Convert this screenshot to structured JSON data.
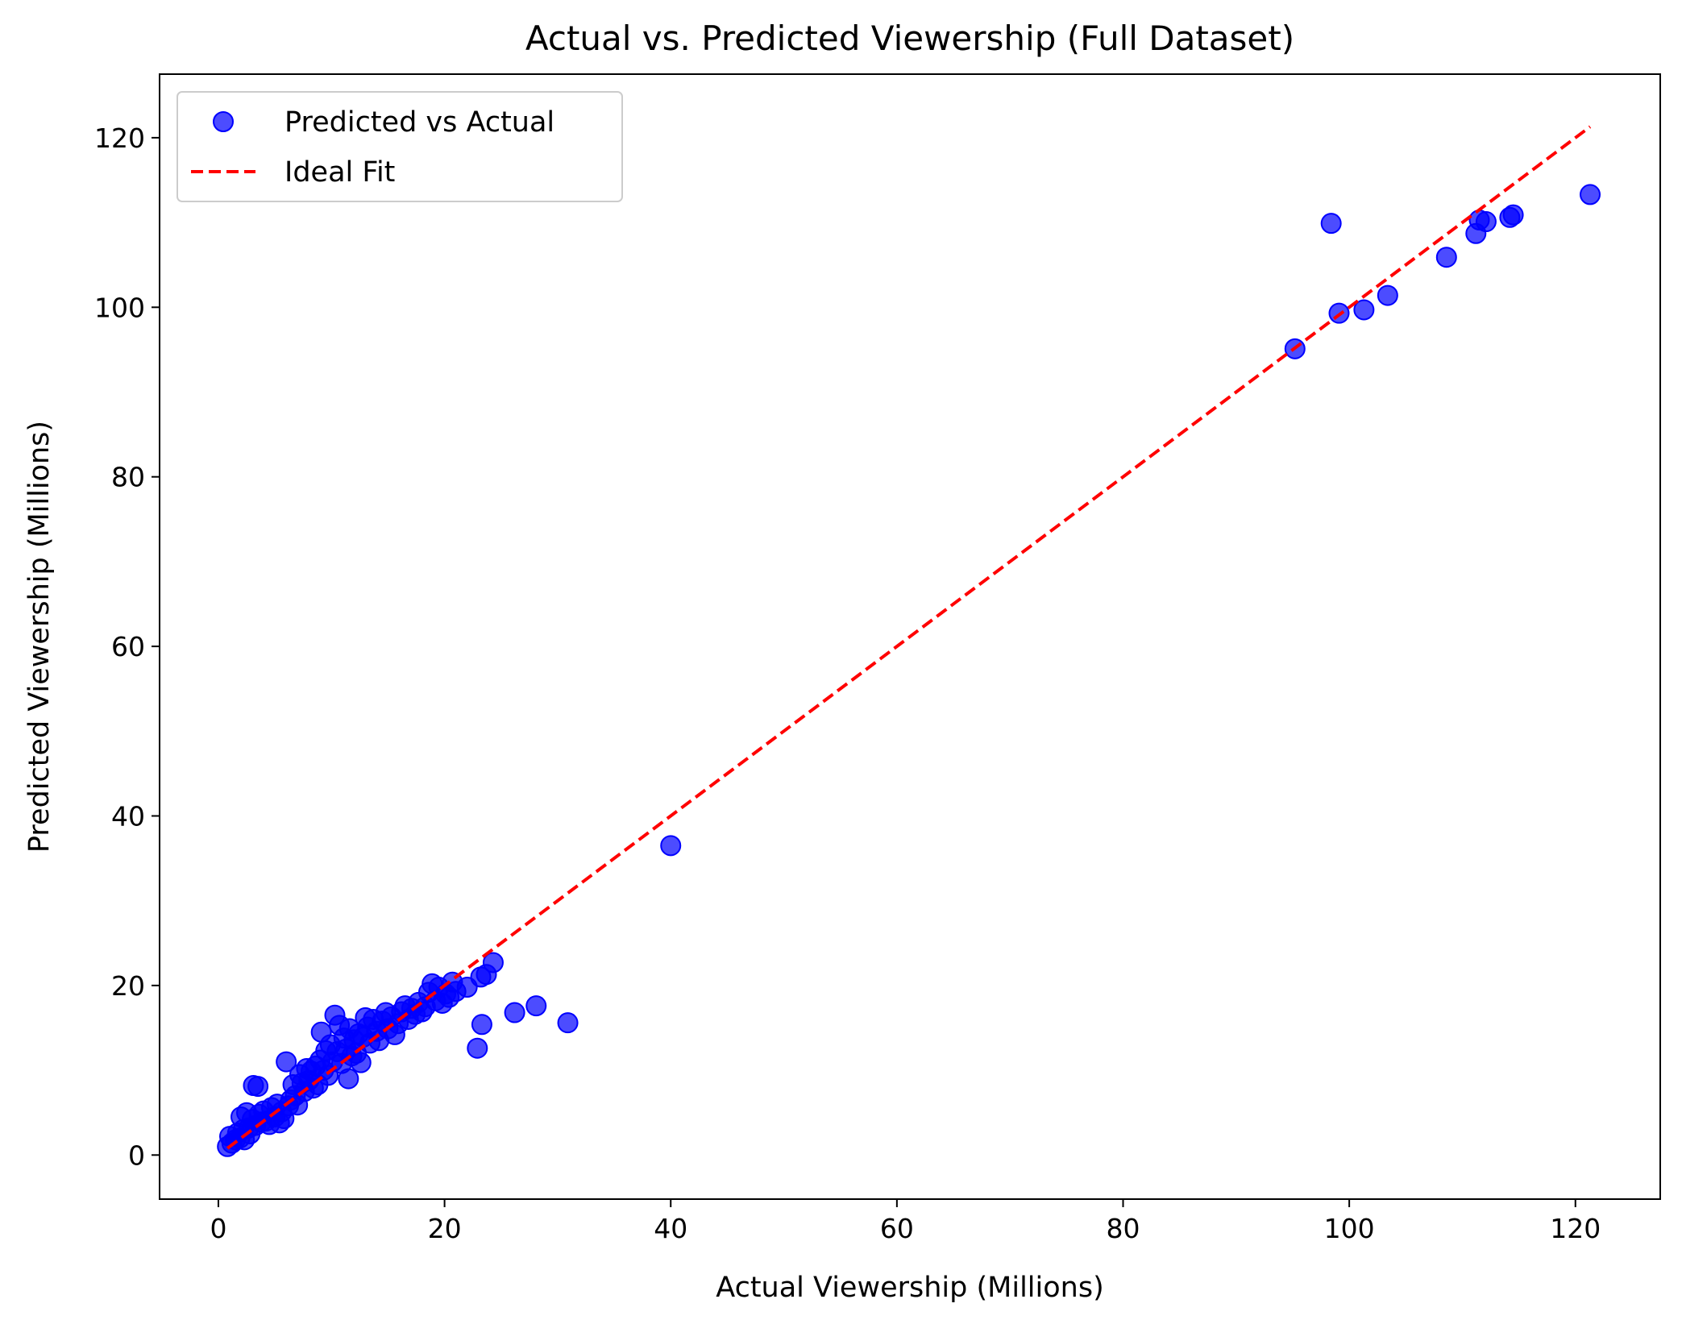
{
  "chart_data": {
    "type": "scatter",
    "title": "Actual vs. Predicted Viewership (Full Dataset)",
    "xlabel": "Actual Viewership (Millions)",
    "ylabel": "Predicted Viewership (Millions)",
    "xlim": [
      -5.2,
      127.5
    ],
    "ylim": [
      -5.2,
      127.5
    ],
    "xticks": [
      0,
      20,
      40,
      60,
      80,
      100,
      120
    ],
    "yticks": [
      0,
      20,
      40,
      60,
      80,
      100,
      120
    ],
    "xtick_labels": [
      "0",
      "20",
      "40",
      "60",
      "80",
      "100",
      "120"
    ],
    "ytick_labels": [
      "0",
      "20",
      "40",
      "60",
      "80",
      "100",
      "120"
    ],
    "grid": false,
    "legend_position": "upper-left",
    "series": [
      {
        "name": "Predicted vs Actual",
        "kind": "scatter",
        "color": "#0000ff",
        "points": [
          [
            0.8,
            1.0
          ],
          [
            1.0,
            2.2
          ],
          [
            1.2,
            1.4
          ],
          [
            1.5,
            1.8
          ],
          [
            1.7,
            2.6
          ],
          [
            1.9,
            2.0
          ],
          [
            2.0,
            4.5
          ],
          [
            2.2,
            3.0
          ],
          [
            2.3,
            1.8
          ],
          [
            2.5,
            5.0
          ],
          [
            2.7,
            3.2
          ],
          [
            2.8,
            2.5
          ],
          [
            3.0,
            4.2
          ],
          [
            3.1,
            8.2
          ],
          [
            3.3,
            3.5
          ],
          [
            3.5,
            8.1
          ],
          [
            3.6,
            4.8
          ],
          [
            3.8,
            3.9
          ],
          [
            4.0,
            5.2
          ],
          [
            4.2,
            4.0
          ],
          [
            4.5,
            3.6
          ],
          [
            4.7,
            5.6
          ],
          [
            5.0,
            4.5
          ],
          [
            5.2,
            6.0
          ],
          [
            5.4,
            3.8
          ],
          [
            5.6,
            5.1
          ],
          [
            5.8,
            4.3
          ],
          [
            6.0,
            11.0
          ],
          [
            6.2,
            5.8
          ],
          [
            6.4,
            6.5
          ],
          [
            6.6,
            8.3
          ],
          [
            6.8,
            7.0
          ],
          [
            7.0,
            5.9
          ],
          [
            7.2,
            9.5
          ],
          [
            7.4,
            8.5
          ],
          [
            7.6,
            7.5
          ],
          [
            7.8,
            10.2
          ],
          [
            8.0,
            8.8
          ],
          [
            8.2,
            9.9
          ],
          [
            8.4,
            7.9
          ],
          [
            8.6,
            10.5
          ],
          [
            8.8,
            8.3
          ],
          [
            9.0,
            11.2
          ],
          [
            9.1,
            14.5
          ],
          [
            9.3,
            10.0
          ],
          [
            9.5,
            12.3
          ],
          [
            9.7,
            9.4
          ],
          [
            9.9,
            13.0
          ],
          [
            10.1,
            11.0
          ],
          [
            10.3,
            16.5
          ],
          [
            10.5,
            12.2
          ],
          [
            10.7,
            15.3
          ],
          [
            10.9,
            10.8
          ],
          [
            11.1,
            13.8
          ],
          [
            11.3,
            12.5
          ],
          [
            11.5,
            9.0
          ],
          [
            11.6,
            14.9
          ],
          [
            11.8,
            11.7
          ],
          [
            12.0,
            13.6
          ],
          [
            12.2,
            12.0
          ],
          [
            12.4,
            14.3
          ],
          [
            12.6,
            10.9
          ],
          [
            12.8,
            13.9
          ],
          [
            13.0,
            16.2
          ],
          [
            13.2,
            15.1
          ],
          [
            13.4,
            13.2
          ],
          [
            13.7,
            16.0
          ],
          [
            14.0,
            14.6
          ],
          [
            14.2,
            13.5
          ],
          [
            14.5,
            15.8
          ],
          [
            14.8,
            16.8
          ],
          [
            15.0,
            14.9
          ],
          [
            15.3,
            16.3
          ],
          [
            15.6,
            14.2
          ],
          [
            15.9,
            15.5
          ],
          [
            16.2,
            16.9
          ],
          [
            16.5,
            17.6
          ],
          [
            16.8,
            16.0
          ],
          [
            17.1,
            17.3
          ],
          [
            17.4,
            16.6
          ],
          [
            17.7,
            18.0
          ],
          [
            18.0,
            16.9
          ],
          [
            18.3,
            17.5
          ],
          [
            18.6,
            19.2
          ],
          [
            18.9,
            20.2
          ],
          [
            19.2,
            18.2
          ],
          [
            19.5,
            19.8
          ],
          [
            19.8,
            17.9
          ],
          [
            20.1,
            19.0
          ],
          [
            20.4,
            18.6
          ],
          [
            20.7,
            20.4
          ],
          [
            21.0,
            19.3
          ],
          [
            22.0,
            19.8
          ],
          [
            23.2,
            21.0
          ],
          [
            23.7,
            21.3
          ],
          [
            24.3,
            22.7
          ],
          [
            22.9,
            12.6
          ],
          [
            23.3,
            15.4
          ],
          [
            26.2,
            16.8
          ],
          [
            28.1,
            17.6
          ],
          [
            30.9,
            15.6
          ],
          [
            40.0,
            36.5
          ],
          [
            95.2,
            95.1
          ],
          [
            98.4,
            109.9
          ],
          [
            99.1,
            99.3
          ],
          [
            101.3,
            99.7
          ],
          [
            103.4,
            101.4
          ],
          [
            108.6,
            105.9
          ],
          [
            111.2,
            108.7
          ],
          [
            111.5,
            110.3
          ],
          [
            112.1,
            110.1
          ],
          [
            114.2,
            110.6
          ],
          [
            114.5,
            110.9
          ],
          [
            121.3,
            113.3
          ]
        ]
      },
      {
        "name": "Ideal Fit",
        "kind": "line",
        "style": "dashed",
        "color": "#ff0000",
        "points": [
          [
            0.8,
            0.8
          ],
          [
            121.3,
            121.3
          ]
        ]
      }
    ]
  }
}
